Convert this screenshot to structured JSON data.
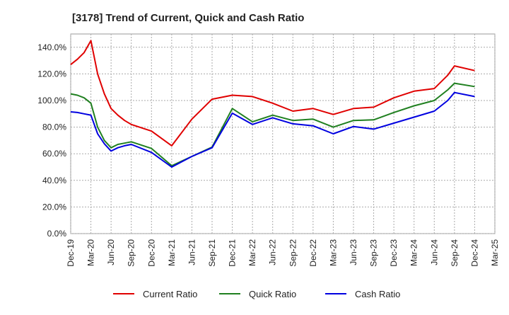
{
  "chart_data": {
    "type": "line",
    "title": "[3178]  Trend of Current, Quick and Cash Ratio",
    "xlabel": "",
    "ylabel": "",
    "ylim": [
      0,
      150
    ],
    "yticks": [
      "0.0%",
      "20.0%",
      "40.0%",
      "60.0%",
      "80.0%",
      "100.0%",
      "120.0%",
      "140.0%"
    ],
    "ytick_values": [
      0,
      20,
      40,
      60,
      80,
      100,
      120,
      140
    ],
    "xticks": [
      "Dec-19",
      "Mar-20",
      "Jun-20",
      "Sep-20",
      "Dec-20",
      "Mar-21",
      "Jun-21",
      "Sep-21",
      "Dec-21",
      "Mar-22",
      "Jun-22",
      "Sep-22",
      "Dec-22",
      "Mar-23",
      "Jun-23",
      "Sep-23",
      "Dec-23",
      "Mar-24",
      "Jun-24",
      "Sep-24",
      "Dec-24",
      "Mar-25"
    ],
    "x_months_range": [
      0,
      63
    ],
    "grid": true,
    "legend": "bottom",
    "series": [
      {
        "name": "Current Ratio",
        "color": "#e00000",
        "x": [
          0,
          1,
          2,
          3,
          4,
          5,
          6,
          7,
          8,
          9,
          12,
          15,
          18,
          21,
          24,
          27,
          30,
          33,
          36,
          39,
          42,
          45,
          48,
          51,
          54,
          56,
          57,
          60
        ],
        "y": [
          127,
          131,
          136,
          145,
          120,
          105,
          94,
          89,
          85,
          82,
          77,
          66,
          86,
          101,
          104,
          103,
          98,
          92,
          94,
          89.5,
          94,
          95,
          102,
          107,
          109,
          119,
          126,
          122.5
        ]
      },
      {
        "name": "Quick Ratio",
        "color": "#208020",
        "x": [
          0,
          1,
          2,
          3,
          4,
          5,
          6,
          7,
          8,
          9,
          12,
          15,
          18,
          21,
          24,
          27,
          30,
          33,
          36,
          39,
          42,
          45,
          48,
          51,
          54,
          56,
          57,
          60
        ],
        "y": [
          105,
          104,
          102,
          98,
          80,
          70,
          64.5,
          67,
          68,
          69,
          64,
          51,
          58,
          65,
          94,
          84,
          89,
          85,
          86,
          80,
          85,
          85.5,
          91,
          96,
          100,
          108,
          113,
          110.5
        ]
      },
      {
        "name": "Cash Ratio",
        "color": "#0000e0",
        "x": [
          0,
          1,
          2,
          3,
          4,
          5,
          6,
          7,
          8,
          9,
          12,
          15,
          18,
          21,
          24,
          27,
          30,
          33,
          36,
          39,
          42,
          45,
          48,
          51,
          54,
          56,
          57,
          60
        ],
        "y": [
          91.5,
          91,
          90,
          89,
          75,
          67.5,
          62,
          64.5,
          66,
          67,
          61,
          50,
          58,
          64.5,
          90.5,
          82,
          87,
          82.5,
          81,
          75,
          80.5,
          78.5,
          83,
          87.5,
          92,
          100,
          106,
          103
        ]
      }
    ]
  }
}
